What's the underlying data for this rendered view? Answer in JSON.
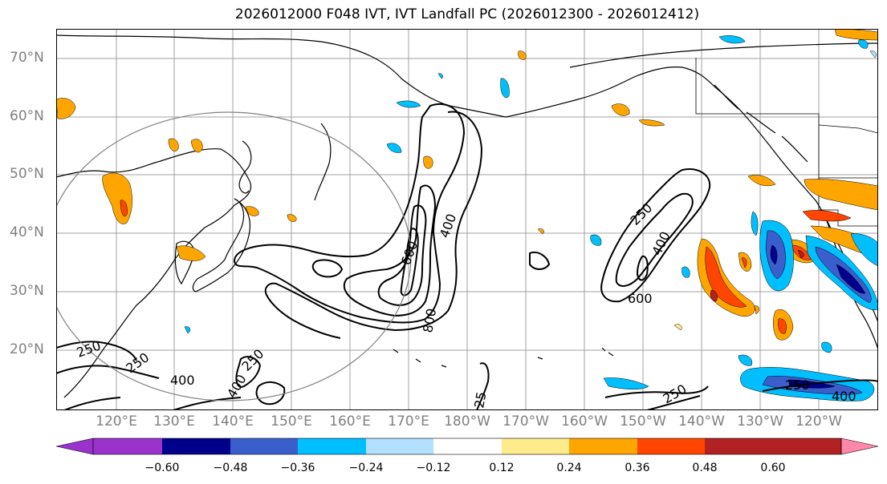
{
  "title": "2026012000 F048 IVT, IVT Landfall PC (2026012300 - 2026012412)",
  "lat_labels": [
    "70°N",
    "60°N",
    "50°N",
    "40°N",
    "30°N",
    "20°N"
  ],
  "lon_labels": [
    "120°E",
    "130°E",
    "140°E",
    "150°E",
    "160°E",
    "170°E",
    "180°W",
    "170°W",
    "160°W",
    "150°W",
    "140°W",
    "130°W",
    "120°W"
  ],
  "contour_labels": {
    "a": "250",
    "b": "250",
    "c": "400",
    "d": "400",
    "e": "250",
    "f": "600",
    "g": "400",
    "h": "800",
    "i": "250",
    "j": "400",
    "k": "600",
    "l": "25",
    "m": "250",
    "n": "250",
    "o": "400"
  },
  "colorbar": {
    "ticks": [
      "−0.60",
      "−0.48",
      "−0.36",
      "−0.24",
      "−0.12",
      "0.12",
      "0.24",
      "0.36",
      "0.48",
      "0.60"
    ],
    "colors": [
      "#ffffff",
      "#ffeb8c",
      "#ffa500",
      "#ff4500",
      "#b22222",
      "#ff88aa",
      "#9933cc",
      "#00008b",
      "#3a5fcd",
      "#00bfff",
      "#b3e0ff"
    ]
  }
}
